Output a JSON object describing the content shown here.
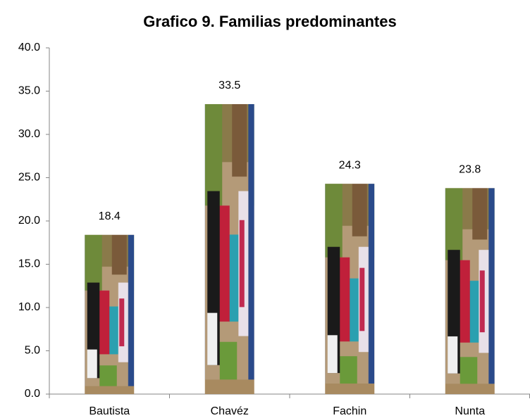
{
  "chart_data": {
    "type": "bar",
    "title": "Grafico 9.  Familias predominantes",
    "categories": [
      "Bautista",
      "Chavéz",
      "Fachin",
      "Nunta"
    ],
    "values": [
      18.4,
      33.5,
      24.3,
      23.8
    ],
    "value_labels": [
      "18.4",
      "33.5",
      "24.3",
      "23.8"
    ],
    "ylim": [
      0,
      40
    ],
    "yticks": [
      {
        "value": 0,
        "label": "0.0"
      },
      {
        "value": 5,
        "label": "5.0"
      },
      {
        "value": 10,
        "label": "10.0"
      },
      {
        "value": 15,
        "label": "15.0"
      },
      {
        "value": 20,
        "label": "20.0"
      },
      {
        "value": 25,
        "label": "25.0"
      },
      {
        "value": 30,
        "label": "30.0"
      },
      {
        "value": 35,
        "label": "35.0"
      },
      {
        "value": 40,
        "label": "40.0"
      }
    ],
    "grid": false
  }
}
